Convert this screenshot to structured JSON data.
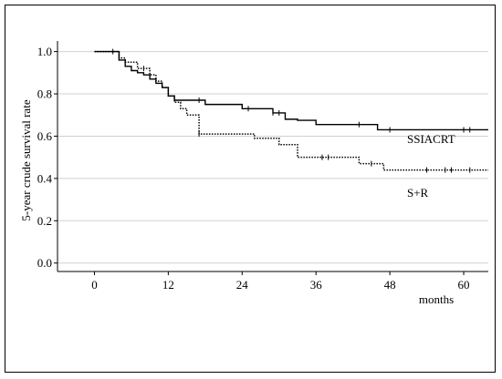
{
  "chart_data": {
    "type": "line",
    "step": true,
    "ylabel": "5-year crude survival rate",
    "xlabel": "months",
    "xlim": [
      -6,
      64
    ],
    "ylim": [
      -0.04,
      1.05
    ],
    "x_ticks": [
      0,
      12,
      24,
      36,
      48,
      60
    ],
    "x_tick_labels": [
      "0",
      "12",
      "24",
      "36",
      "48",
      "60"
    ],
    "y_ticks": [
      0.0,
      0.2,
      0.4,
      0.6,
      0.8,
      1.0
    ],
    "y_tick_labels": [
      "0.0",
      "0.2",
      "0.4",
      "0.6",
      "0.8",
      "1.0"
    ],
    "grid_y": true,
    "series": [
      {
        "name": "SSIACRT",
        "style": "solid",
        "color": "#000000",
        "x": [
          0,
          4,
          5,
          6,
          7,
          8,
          9,
          10,
          11,
          12,
          13,
          18,
          24,
          29,
          31,
          33,
          36,
          46,
          64
        ],
        "y": [
          1.0,
          0.96,
          0.93,
          0.91,
          0.9,
          0.89,
          0.87,
          0.85,
          0.83,
          0.79,
          0.77,
          0.75,
          0.73,
          0.71,
          0.68,
          0.675,
          0.655,
          0.63,
          0.63
        ],
        "censored_x": [
          3,
          17,
          25,
          29,
          30,
          43,
          48,
          60,
          61
        ]
      },
      {
        "name": "S+R",
        "style": "dotted",
        "color": "#000000",
        "x": [
          0,
          4,
          5,
          7,
          9,
          10,
          11,
          12,
          13,
          14,
          15,
          17,
          26,
          30,
          33,
          43,
          47,
          64
        ],
        "y": [
          1.0,
          0.97,
          0.95,
          0.92,
          0.89,
          0.86,
          0.83,
          0.79,
          0.76,
          0.73,
          0.7,
          0.61,
          0.59,
          0.56,
          0.5,
          0.47,
          0.44,
          0.44
        ],
        "censored_x": [
          4,
          8,
          17,
          37,
          38,
          45,
          54,
          57,
          58,
          61
        ]
      }
    ]
  }
}
